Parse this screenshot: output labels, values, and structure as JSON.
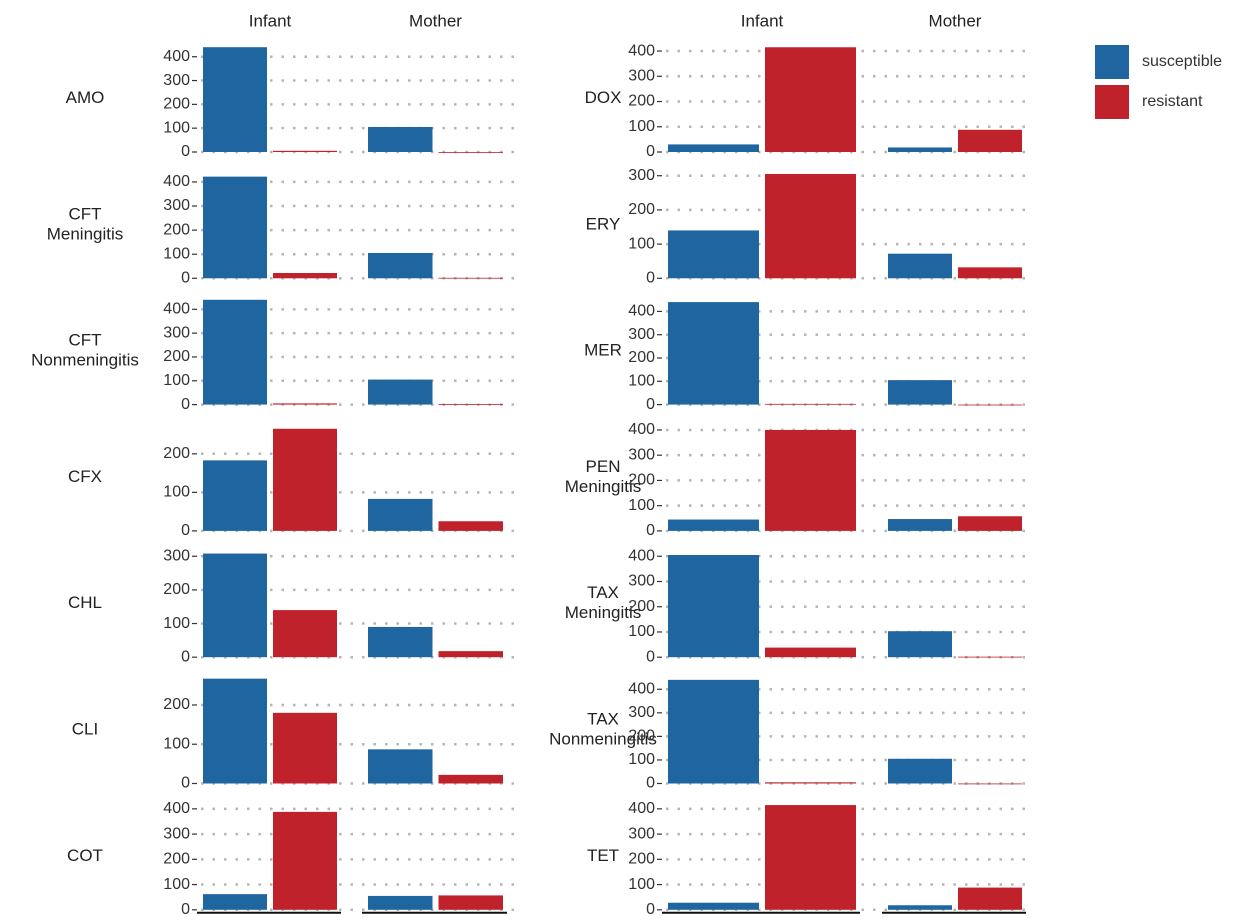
{
  "chart_data": {
    "type": "faceted-bar",
    "facets": [
      "Infant",
      "Mother"
    ],
    "series": [
      {
        "name": "susceptible",
        "color": "#1f65a0"
      },
      {
        "name": "resistant",
        "color": "#c0222b"
      }
    ],
    "grid": true,
    "panels": [
      {
        "label": "AMO",
        "ylim": [
          0,
          445
        ],
        "yticks": [
          0,
          100,
          200,
          300,
          400
        ],
        "values": [
          [
            440,
            5
          ],
          [
            105,
            0
          ]
        ]
      },
      {
        "label": "CFT Meningitis",
        "ylim": [
          0,
          440
        ],
        "yticks": [
          0,
          100,
          200,
          300,
          400
        ],
        "values": [
          [
            422,
            22
          ],
          [
            105,
            2
          ]
        ]
      },
      {
        "label": "CFT Nonmeningitis",
        "ylim": [
          0,
          445
        ],
        "yticks": [
          0,
          100,
          200,
          300,
          400
        ],
        "values": [
          [
            440,
            5
          ],
          [
            105,
            2
          ]
        ]
      },
      {
        "label": "CFX",
        "ylim": [
          0,
          275
        ],
        "yticks": [
          0,
          100,
          200
        ],
        "values": [
          [
            183,
            265
          ],
          [
            83,
            25
          ]
        ]
      },
      {
        "label": "CHL",
        "ylim": [
          0,
          315
        ],
        "yticks": [
          0,
          100,
          200,
          300
        ],
        "values": [
          [
            308,
            140
          ],
          [
            90,
            18
          ]
        ]
      },
      {
        "label": "CLI",
        "ylim": [
          0,
          270
        ],
        "yticks": [
          0,
          100,
          200
        ],
        "values": [
          [
            267,
            180
          ],
          [
            87,
            22
          ]
        ]
      },
      {
        "label": "COT",
        "ylim": [
          0,
          420
        ],
        "yticks": [
          0,
          100,
          200,
          300,
          400
        ],
        "values": [
          [
            62,
            388
          ],
          [
            55,
            57
          ]
        ]
      },
      {
        "label": "DOX",
        "ylim": [
          0,
          420
        ],
        "yticks": [
          0,
          100,
          200,
          300,
          400
        ],
        "values": [
          [
            30,
            415
          ],
          [
            18,
            88
          ]
        ]
      },
      {
        "label": "ERY",
        "ylim": [
          0,
          310
        ],
        "yticks": [
          0,
          100,
          200,
          300
        ],
        "values": [
          [
            140,
            305
          ],
          [
            72,
            32
          ]
        ]
      },
      {
        "label": "MER",
        "ylim": [
          0,
          455
        ],
        "yticks": [
          0,
          100,
          200,
          300,
          400
        ],
        "values": [
          [
            440,
            3
          ],
          [
            105,
            0
          ]
        ]
      },
      {
        "label": "PEN Meningitis",
        "ylim": [
          0,
          420
        ],
        "yticks": [
          0,
          100,
          200,
          300,
          400
        ],
        "values": [
          [
            45,
            400
          ],
          [
            47,
            58
          ]
        ]
      },
      {
        "label": "TAX Meningitis",
        "ylim": [
          0,
          420
        ],
        "yticks": [
          0,
          100,
          200,
          300,
          400
        ],
        "values": [
          [
            405,
            38
          ],
          [
            103,
            2
          ]
        ]
      },
      {
        "label": "TAX Nonmeningitis",
        "ylim": [
          0,
          450
        ],
        "yticks": [
          0,
          100,
          200,
          300,
          400
        ],
        "values": [
          [
            440,
            5
          ],
          [
            105,
            0
          ]
        ]
      },
      {
        "label": "TET",
        "ylim": [
          0,
          420
        ],
        "yticks": [
          0,
          100,
          200,
          300,
          400
        ],
        "values": [
          [
            28,
            415
          ],
          [
            18,
            88
          ]
        ]
      }
    ]
  }
}
